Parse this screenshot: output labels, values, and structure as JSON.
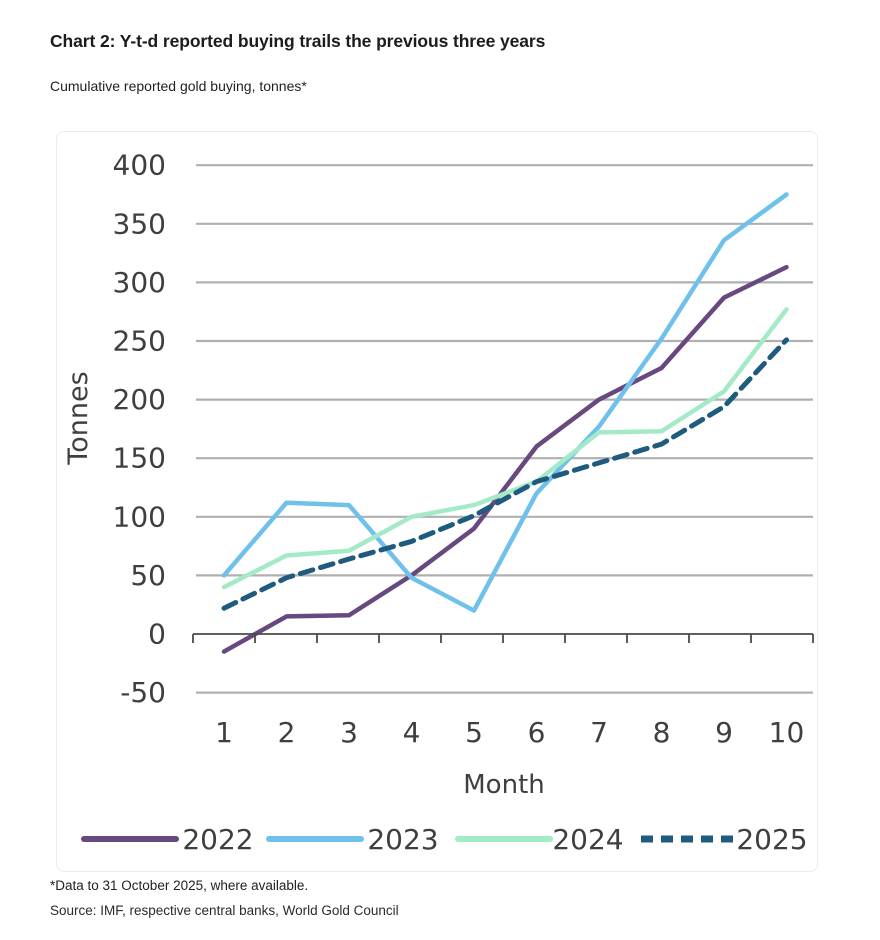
{
  "header": {
    "title": "Chart 2: Y-t-d reported buying trails the previous three years",
    "subtitle": "Cumulative reported gold buying, tonnes*"
  },
  "chart_data": {
    "type": "line",
    "x": [
      1,
      2,
      3,
      4,
      5,
      6,
      7,
      8,
      9,
      10
    ],
    "xlabel": "Month",
    "ylabel": "Tonnes",
    "ylim": [
      -50,
      400
    ],
    "ytick_step": 50,
    "grid": true,
    "legend_position": "bottom",
    "grid_color": "#b0b0b0",
    "axis_color": "#4a4a4a",
    "series": [
      {
        "name": "2022",
        "color": "#67497f",
        "style": "solid",
        "values": [
          -15,
          15,
          16,
          50,
          90,
          160,
          200,
          227,
          287,
          313
        ]
      },
      {
        "name": "2023",
        "color": "#6fc1ec",
        "style": "solid",
        "values": [
          50,
          112,
          110,
          48,
          20,
          120,
          177,
          252,
          336,
          375
        ]
      },
      {
        "name": "2024",
        "color": "#a4eac6",
        "style": "solid",
        "values": [
          40,
          67,
          71,
          100,
          110,
          130,
          172,
          173,
          207,
          277
        ]
      },
      {
        "name": "2025",
        "color": "#1f5b7e",
        "style": "dashed",
        "values": [
          22,
          48,
          64,
          79,
          101,
          130,
          146,
          162,
          194,
          251
        ]
      }
    ]
  },
  "footnotes": {
    "note": "*Data to 31 October 2025, where available.",
    "source": "Source: IMF, respective central banks, World Gold Council"
  }
}
